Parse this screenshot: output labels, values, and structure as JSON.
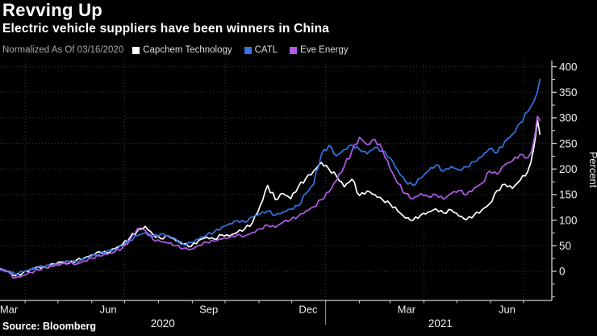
{
  "header": {
    "title": "Revving Up",
    "subtitle": "Electric vehicle suppliers have been winners in China"
  },
  "legend": {
    "note": "Normalized As Of 03/16/2020",
    "items": [
      {
        "label": "Capchem Technology",
        "color": "#ffffff"
      },
      {
        "label": "CATL",
        "color": "#3474e4"
      },
      {
        "label": "Eve Energy",
        "color": "#b15ce6"
      }
    ]
  },
  "source": "Source: Bloomberg",
  "chart_data": {
    "type": "line",
    "title": "Revving Up",
    "subtitle": "Electric vehicle suppliers have been winners in China",
    "note": "Normalized As Of 03/16/2020",
    "ylabel": "Percent",
    "ylim": [
      -57,
      412
    ],
    "yticks": [
      0,
      50,
      100,
      150,
      200,
      250,
      300,
      350,
      400
    ],
    "y_minor_ticks": [
      -50,
      -25,
      25,
      75,
      125,
      175,
      225,
      275,
      325,
      375
    ],
    "grid": true,
    "legend_position": "top",
    "colors": {
      "background": "#000000",
      "grid": "#3c3c3c",
      "axis": "#d0d0d0",
      "tick_text": "#f0f0f0",
      "year_divider": "#999999"
    },
    "x_unit": "days since 2020-03-09",
    "x_domain": [
      0,
      505
    ],
    "grid_x_days": [
      23,
      114,
      206,
      298,
      388,
      479
    ],
    "minor_x_tick_days": [
      23,
      53,
      84,
      114,
      145,
      176,
      206,
      237,
      267,
      298,
      329,
      357,
      388,
      418,
      449,
      479
    ],
    "month_ticks": {
      "days": [
        7,
        99,
        191,
        282,
        372,
        464
      ],
      "labels": [
        "Mar",
        "Jun",
        "Sep",
        "Dec",
        "Mar",
        "Jun"
      ]
    },
    "year_labels": [
      {
        "label": "2020",
        "day": 149
      },
      {
        "label": "2021",
        "day": 403
      }
    ],
    "year_divider_day": 298,
    "x_days": [
      0,
      7,
      14,
      21,
      28,
      35,
      42,
      49,
      56,
      63,
      70,
      77,
      84,
      91,
      98,
      105,
      112,
      119,
      126,
      133,
      140,
      147,
      154,
      161,
      168,
      175,
      182,
      189,
      196,
      203,
      210,
      217,
      224,
      231,
      238,
      245,
      252,
      259,
      266,
      273,
      280,
      287,
      294,
      301,
      308,
      315,
      322,
      329,
      336,
      343,
      350,
      357,
      364,
      371,
      378,
      385,
      392,
      399,
      406,
      413,
      420,
      427,
      434,
      441,
      448,
      455,
      462,
      469,
      476,
      483,
      486,
      489,
      492,
      494
    ],
    "series": [
      {
        "name": "Capchem Technology",
        "color": "#ffffff",
        "values": [
          5,
          0,
          -9,
          -3,
          4,
          9,
          7,
          14,
          18,
          15,
          22,
          26,
          32,
          38,
          36,
          44,
          52,
          66,
          80,
          88,
          72,
          64,
          69,
          60,
          53,
          49,
          61,
          67,
          63,
          71,
          69,
          76,
          83,
          95,
          128,
          168,
          140,
          152,
          142,
          165,
          182,
          196,
          213,
          200,
          186,
          165,
          180,
          148,
          157,
          150,
          140,
          132,
          118,
          104,
          100,
          110,
          116,
          122,
          114,
          120,
          108,
          101,
          110,
          120,
          132,
          158,
          170,
          162,
          178,
          195,
          215,
          248,
          295,
          268
        ]
      },
      {
        "name": "CATL",
        "color": "#3474e4",
        "values": [
          4,
          0,
          -6,
          -1,
          3,
          8,
          11,
          13,
          16,
          20,
          18,
          24,
          30,
          34,
          40,
          43,
          50,
          60,
          70,
          75,
          68,
          73,
          70,
          63,
          52,
          56,
          63,
          71,
          77,
          86,
          93,
          99,
          96,
          106,
          112,
          118,
          110,
          116,
          122,
          128,
          152,
          170,
          228,
          246,
          226,
          238,
          247,
          238,
          230,
          242,
          235,
          222,
          198,
          176,
          168,
          182,
          196,
          208,
          196,
          205,
          198,
          204,
          214,
          224,
          240,
          232,
          254,
          268,
          290,
          312,
          322,
          334,
          352,
          375
        ]
      },
      {
        "name": "Eve Energy",
        "color": "#b15ce6",
        "values": [
          3,
          0,
          -13,
          -8,
          -2,
          3,
          7,
          10,
          14,
          17,
          14,
          20,
          26,
          30,
          33,
          38,
          46,
          62,
          84,
          80,
          62,
          58,
          55,
          50,
          45,
          43,
          51,
          57,
          59,
          63,
          66,
          71,
          69,
          76,
          83,
          90,
          86,
          96,
          101,
          108,
          118,
          126,
          140,
          155,
          178,
          205,
          235,
          262,
          248,
          258,
          238,
          200,
          172,
          152,
          142,
          152,
          146,
          150,
          141,
          152,
          158,
          150,
          163,
          172,
          196,
          190,
          208,
          216,
          228,
          222,
          232,
          260,
          303,
          295
        ]
      }
    ]
  }
}
